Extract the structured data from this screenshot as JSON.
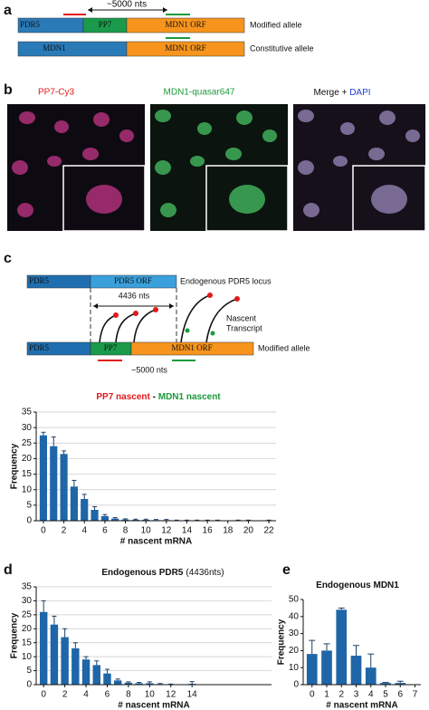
{
  "panels": {
    "a": {
      "label": "a",
      "span": "~5000 nts",
      "modified": {
        "segments": [
          "PDR5",
          "PP7",
          "MDN1 ORF"
        ],
        "label": "Modified allele"
      },
      "constitutive": {
        "segments": [
          "MDN1",
          "MDN1 ORF"
        ],
        "label": "Constitutive allele"
      }
    },
    "b": {
      "label": "b",
      "titles": [
        "PP7-Cy3",
        "MDN1-quasar647"
      ],
      "merge": [
        "Merge + ",
        "DAPI"
      ]
    },
    "c": {
      "label": "c",
      "top": [
        "PDR5",
        "PDR5 ORF"
      ],
      "locus": "Endogenous PDR5 locus",
      "length": "4436 nts",
      "nascent": [
        "Nascent",
        "Transcript"
      ],
      "bottom": [
        "PDR5",
        "PP7",
        "MDN1 ORF"
      ],
      "modified": "Modified allele",
      "span": "~5000 nts"
    }
  },
  "chart_data": [
    {
      "type": "bar",
      "title": [
        "PP7 nascent",
        " - ",
        "MDN1 nascent"
      ],
      "title_colors": [
        "#e3191c",
        "#111111",
        "#1a9a3a"
      ],
      "x_label": "# nascent mRNA",
      "y_label": "Frequency",
      "color": "#1f66a8",
      "grid": true,
      "x": [
        0,
        1,
        2,
        3,
        4,
        5,
        6,
        7,
        8,
        9,
        10,
        11,
        12,
        13,
        14,
        15,
        16,
        17,
        18,
        19,
        20,
        21,
        22
      ],
      "values": [
        27.5,
        24,
        21.5,
        11,
        7,
        3.5,
        1.5,
        0.7,
        0.4,
        0.3,
        0.3,
        0.2,
        0.2,
        0.1,
        0.1,
        0.1,
        0.1,
        0.1,
        0,
        0.1,
        0.1,
        0,
        0.1
      ],
      "errors": [
        1,
        3,
        1,
        2,
        1.5,
        1,
        0.5,
        0.3,
        0.2,
        0.2,
        0.2,
        0.2,
        0.2,
        0.1,
        0.1,
        0.1,
        0.1,
        0.1,
        0,
        0.1,
        0.1,
        0,
        0.1
      ],
      "xlim": [
        -0.7,
        22.7
      ],
      "xticks": [
        0,
        2,
        4,
        6,
        8,
        10,
        12,
        14,
        16,
        18,
        20,
        22
      ],
      "ylim": [
        0,
        35
      ],
      "yticks": [
        0,
        5,
        10,
        15,
        20,
        25,
        30,
        35
      ]
    },
    {
      "type": "bar",
      "panel": "d",
      "title": "Endogenous PDR5",
      "subtitle": "(4436nts)",
      "x_label": "# nascent mRNA",
      "y_label": "Frequency",
      "color": "#1f66a8",
      "grid": true,
      "x": [
        0,
        1,
        2,
        3,
        4,
        5,
        6,
        7,
        8,
        9,
        10,
        11,
        12,
        13,
        14
      ],
      "values": [
        26,
        21.5,
        17,
        13,
        9,
        7,
        4,
        1.5,
        0.7,
        0.5,
        0.5,
        0.2,
        0.1,
        0,
        0.3
      ],
      "errors": [
        4,
        3,
        3,
        2,
        1,
        1.5,
        1.5,
        0.5,
        0.3,
        0.3,
        0.5,
        0.2,
        0.1,
        0,
        0.8
      ],
      "xlim": [
        -0.7,
        21.5
      ],
      "xticks": [
        0,
        2,
        4,
        6,
        8,
        10,
        12,
        14
      ],
      "ylim": [
        0,
        35
      ],
      "yticks": [
        0,
        5,
        10,
        15,
        20,
        25,
        30,
        35
      ]
    },
    {
      "type": "bar",
      "panel": "e",
      "title": "Endogenous MDN1",
      "x_label": "# nascent mRNA",
      "y_label": "Frequency",
      "color": "#1f66a8",
      "grid": false,
      "x": [
        0,
        1,
        2,
        3,
        4,
        5,
        6
      ],
      "values": [
        18,
        20,
        44,
        17,
        10,
        1,
        1
      ],
      "errors": [
        8,
        4,
        1,
        6,
        8,
        0.3,
        1
      ],
      "xlim": [
        -0.6,
        7.4
      ],
      "xticks": [
        0,
        1,
        2,
        3,
        4,
        5,
        6,
        7
      ],
      "ylim": [
        0,
        50
      ],
      "yticks": [
        0,
        10,
        20,
        30,
        40,
        50
      ]
    }
  ]
}
